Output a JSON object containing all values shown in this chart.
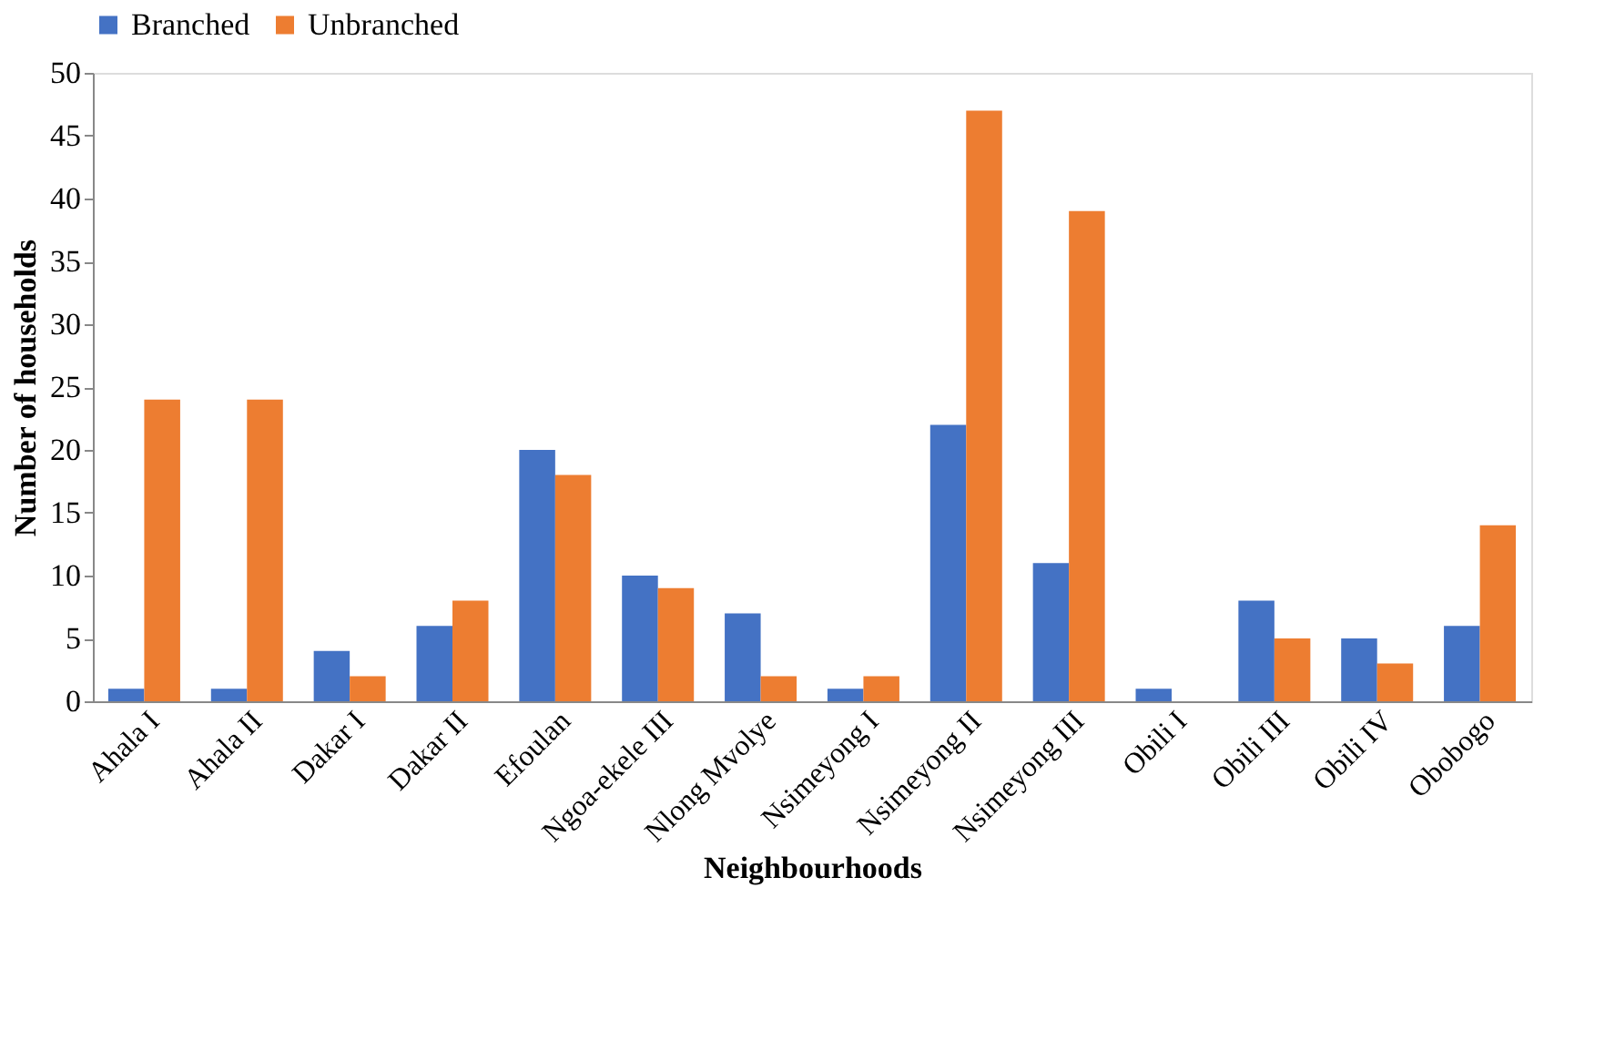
{
  "chart_data": {
    "type": "bar",
    "xlabel": "Neighbourhoods",
    "ylabel": "Number of households",
    "categories": [
      "Ahala I",
      "Ahala II",
      "Dakar I",
      "Dakar II",
      "Efoulan",
      "Ngoa-ekele III",
      "Nlong Mvolye",
      "Nsimeyong I",
      "Nsimeyong II",
      "Nsimeyong III",
      "Obili I",
      "Obili III",
      "Obili IV",
      "Obobogo"
    ],
    "series": [
      {
        "name": "Branched",
        "color": "#4472c4",
        "values": [
          1,
          1,
          4,
          6,
          20,
          10,
          7,
          1,
          22,
          11,
          1,
          8,
          5,
          6
        ]
      },
      {
        "name": "Unbranched",
        "color": "#ed7d31",
        "values": [
          24,
          24,
          2,
          8,
          18,
          9,
          2,
          2,
          47,
          39,
          0,
          5,
          3,
          14
        ]
      }
    ],
    "ylim": [
      0,
      50
    ],
    "yticks": [
      0,
      5,
      10,
      15,
      20,
      25,
      30,
      35,
      40,
      45,
      50
    ],
    "grid": false,
    "legend": "top"
  }
}
